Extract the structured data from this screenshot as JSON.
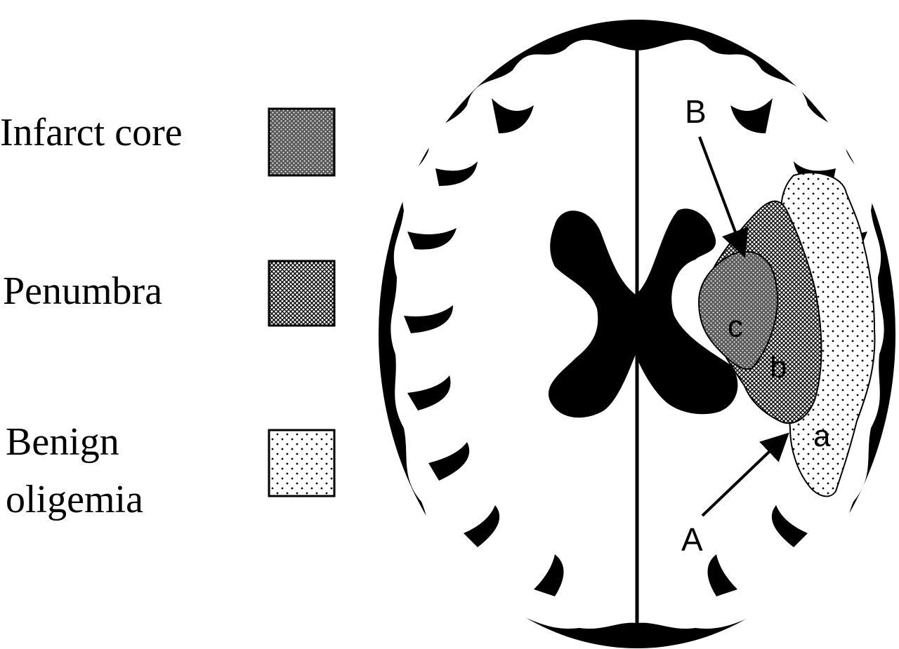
{
  "legend": {
    "items": [
      {
        "label": "Infarct core",
        "pattern": "dense-dots"
      },
      {
        "label": "Penumbra",
        "pattern": "crosshatch"
      },
      {
        "label_lines": [
          "Benign",
          "oligemia"
        ],
        "pattern": "sparse-dots"
      }
    ]
  },
  "diagram": {
    "regions": {
      "core": "c",
      "penumbra": "b",
      "oligemia": "a"
    },
    "arrows": {
      "upper": "B",
      "lower": "A"
    }
  },
  "colors": {
    "ink": "#000000",
    "paper": "#ffffff",
    "core_fill": "#6f6f6f",
    "penumbra_fill": "#9a9a9a",
    "oligemia_fill": "#ededed"
  }
}
